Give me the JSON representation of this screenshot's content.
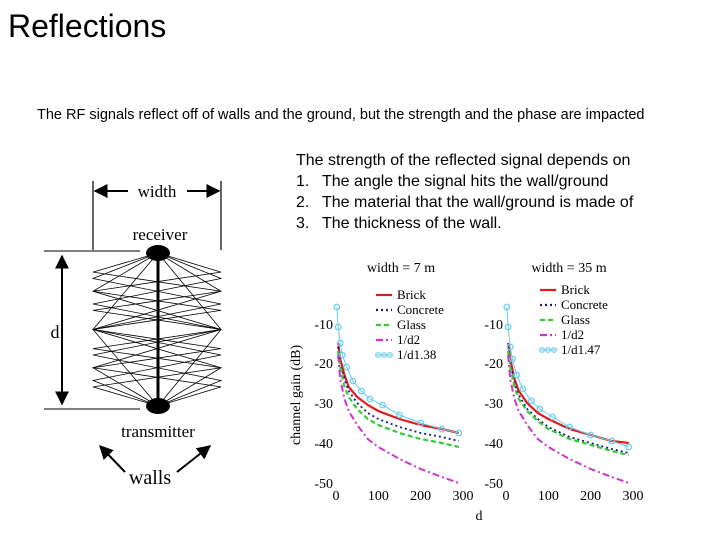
{
  "slide": {
    "title": "Reflections",
    "subtitle": "The RF signals reflect off of walls and the ground, but the strength and the phase are impacted",
    "intro": "The strength of the reflected signal depends on",
    "points": [
      {
        "num": "1.",
        "text": "The angle the signal hits the wall/ground"
      },
      {
        "num": "2.",
        "text": "The material that the wall/ground is made of"
      },
      {
        "num": "3.",
        "text": "The thickness of the wall."
      }
    ]
  },
  "diagram": {
    "width_label": "width",
    "receiver_label": "receiver",
    "d_label": "d",
    "transmitter_label": "transmitter",
    "walls_label": "walls"
  },
  "colors": {
    "brick": "#e31a1c",
    "concrete": "#1a1a80",
    "glass": "#33cc33",
    "d2": "#cc33cc",
    "d138": "#66ccee"
  },
  "chart_data": [
    {
      "type": "line",
      "title": "width = 7 m",
      "ylabel": "channel gain (dB)",
      "xlabel": "",
      "xlim": [
        0,
        300
      ],
      "ylim": [
        -50,
        0
      ],
      "xticks": [
        "0",
        "100",
        "200",
        "300"
      ],
      "yticks": [
        "-10",
        "-20",
        "-30",
        "-40",
        "-50"
      ],
      "legend": "top-right",
      "series": [
        {
          "name": "Brick",
          "x": [
            5,
            10,
            20,
            30,
            50,
            75,
            100,
            150,
            200,
            250,
            290
          ],
          "y": [
            -14,
            -18,
            -22,
            -25,
            -27.5,
            -29.5,
            -31,
            -33,
            -34.5,
            -35.5,
            -36.5
          ]
        },
        {
          "name": "Concrete",
          "x": [
            5,
            10,
            20,
            30,
            50,
            75,
            100,
            150,
            200,
            250,
            290
          ],
          "y": [
            -15,
            -19,
            -23,
            -26,
            -29,
            -31.5,
            -33,
            -35,
            -36.5,
            -37.5,
            -38.5
          ]
        },
        {
          "name": "Glass",
          "x": [
            5,
            10,
            20,
            30,
            50,
            75,
            100,
            150,
            200,
            250,
            290
          ],
          "y": [
            -16,
            -20,
            -25,
            -27.5,
            -30.5,
            -33,
            -34.5,
            -36.5,
            -38,
            -39,
            -40
          ]
        },
        {
          "name": "1/d2",
          "x": [
            5,
            10,
            20,
            30,
            50,
            75,
            100,
            150,
            200,
            250,
            290
          ],
          "y": [
            -17,
            -23,
            -28,
            -31,
            -34.5,
            -38,
            -40,
            -43,
            -45.5,
            -47.5,
            -49
          ]
        },
        {
          "name": "1/d1.38",
          "x": [
            2,
            5,
            10,
            15,
            25,
            40,
            60,
            80,
            110,
            150,
            200,
            250,
            290
          ],
          "y": [
            -5,
            -10,
            -14,
            -17,
            -20,
            -23.5,
            -26,
            -28,
            -29.5,
            -32,
            -34,
            -35.5,
            -36.5
          ]
        }
      ]
    },
    {
      "type": "line",
      "title": "width = 35 m",
      "ylabel": "",
      "xlabel": "d",
      "xlim": [
        0,
        300
      ],
      "ylim": [
        -50,
        0
      ],
      "xticks": [
        "0",
        "100",
        "200",
        "300"
      ],
      "yticks": [
        "-10",
        "-20",
        "-30",
        "-40",
        "-50"
      ],
      "legend": "top-right",
      "series": [
        {
          "name": "Brick",
          "x": [
            5,
            10,
            20,
            30,
            50,
            75,
            100,
            150,
            200,
            250,
            290
          ],
          "y": [
            -14,
            -18,
            -23,
            -26,
            -29,
            -31.5,
            -33,
            -35.5,
            -37,
            -38.5,
            -39
          ]
        },
        {
          "name": "Concrete",
          "x": [
            5,
            10,
            20,
            30,
            50,
            75,
            100,
            150,
            200,
            250,
            290
          ],
          "y": [
            -15,
            -19,
            -24,
            -27,
            -30.5,
            -33,
            -35,
            -37.5,
            -39,
            -40.5,
            -41.5
          ]
        },
        {
          "name": "Glass",
          "x": [
            5,
            10,
            20,
            30,
            50,
            75,
            100,
            150,
            200,
            250,
            290
          ],
          "y": [
            -16,
            -20,
            -25,
            -28,
            -31,
            -33.5,
            -35.5,
            -38,
            -39.5,
            -41,
            -42
          ]
        },
        {
          "name": "1/d2",
          "x": [
            5,
            10,
            20,
            30,
            50,
            75,
            100,
            150,
            200,
            250,
            290
          ],
          "y": [
            -17,
            -23,
            -28,
            -31,
            -34.5,
            -38,
            -40,
            -43,
            -45.5,
            -47.5,
            -49
          ]
        },
        {
          "name": "1/d1.47",
          "x": [
            2,
            5,
            10,
            15,
            25,
            40,
            60,
            80,
            110,
            150,
            200,
            250,
            290
          ],
          "y": [
            -5,
            -10,
            -15,
            -18,
            -22,
            -25.5,
            -28.5,
            -30.5,
            -32.5,
            -35,
            -37,
            -38.5,
            -40
          ]
        }
      ]
    }
  ]
}
